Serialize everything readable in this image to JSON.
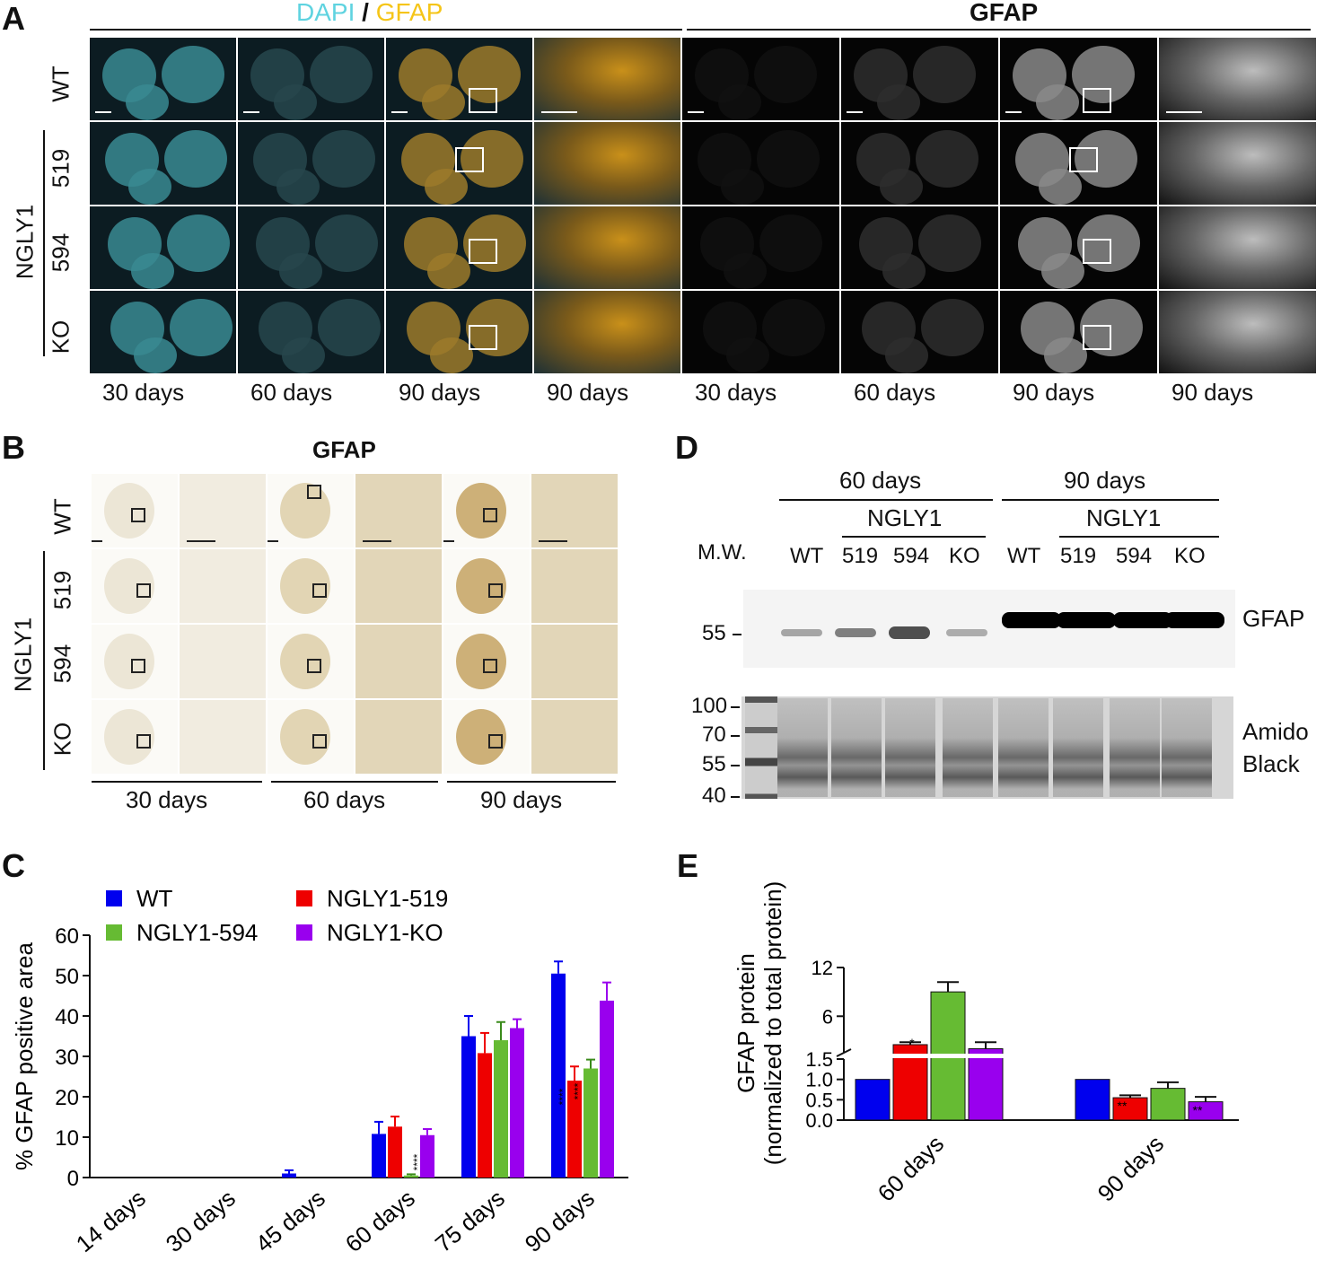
{
  "panels": {
    "A": "A",
    "B": "B",
    "C": "C",
    "D": "D",
    "E": "E"
  },
  "panelA": {
    "header_left_dapi": "DAPI",
    "header_left_sep": " / ",
    "header_left_gfap": "GFAP",
    "header_right": "GFAP",
    "row_labels": [
      "WT",
      "519",
      "594",
      "KO"
    ],
    "group_label": "NGLY1",
    "col_labels": [
      "30 days",
      "60 days",
      "90 days",
      "90 days",
      "30 days",
      "60 days",
      "90 days",
      "90 days"
    ],
    "colors": {
      "dapi": "#5fd3e0",
      "gfap": "#f5c518"
    }
  },
  "panelB": {
    "title": "GFAP",
    "row_labels": [
      "WT",
      "519",
      "594",
      "KO"
    ],
    "group_label": "NGLY1",
    "col_labels": [
      "30 days",
      "60 days",
      "90 days"
    ]
  },
  "panelD": {
    "group_labels": [
      "60 days",
      "90 days"
    ],
    "sub_labels": [
      "NGLY1",
      "NGLY1"
    ],
    "mw_label": "M.W.",
    "lane_labels": [
      "WT",
      "519",
      "594",
      "KO",
      "WT",
      "519",
      "594",
      "KO"
    ],
    "gfap_marker": "55",
    "gfap_label": "GFAP",
    "amido_markers": [
      "100",
      "70",
      "55",
      "40"
    ],
    "amido_label_1": "Amido",
    "amido_label_2": "Black",
    "gfap_band_intensity": [
      0.15,
      0.35,
      0.6,
      0.12,
      1.0,
      1.0,
      1.0,
      1.0
    ]
  },
  "chart_data": [
    {
      "type": "bar",
      "ylabel": "% GFAP positive area",
      "ylim": [
        0,
        60
      ],
      "yticks": [
        "0",
        "10",
        "20",
        "30",
        "40",
        "50",
        "60"
      ],
      "categories": [
        "14 days",
        "30 days",
        "45 days",
        "60 days",
        "75 days",
        "90 days"
      ],
      "series": [
        {
          "name": "WT",
          "color": "#0000ee",
          "values": [
            0,
            0,
            1.0,
            10.8,
            35.0,
            50.5
          ],
          "errors": [
            0,
            0,
            0.8,
            3.0,
            5.0,
            3.0
          ]
        },
        {
          "name": "NGLY1-519",
          "color": "#ee0000",
          "values": [
            0,
            0,
            0,
            12.6,
            30.8,
            24.0
          ],
          "errors": [
            0,
            0,
            0,
            2.5,
            5.0,
            3.5
          ]
        },
        {
          "name": "NGLY1-594",
          "color": "#66bb33",
          "values": [
            0,
            0,
            0,
            0.5,
            34.0,
            27.0
          ],
          "errors": [
            0,
            0,
            0,
            0.3,
            4.5,
            2.2
          ]
        },
        {
          "name": "NGLY1-KO",
          "color": "#9900ee",
          "values": [
            0,
            0,
            0,
            10.5,
            37.0,
            43.8
          ],
          "errors": [
            0,
            0,
            0,
            1.5,
            2.2,
            4.5
          ]
        }
      ],
      "annotations": [
        "****",
        "****",
        "****"
      ],
      "legend_position": "top"
    },
    {
      "type": "bar",
      "ylabel_line1": "GFAP protein",
      "ylabel_line2": "(normalized to total protein)",
      "yticks_lower": [
        "0.0",
        "0.5",
        "1.0",
        "1.5"
      ],
      "yticks_upper": [
        "6",
        "12"
      ],
      "axis_break": true,
      "categories": [
        "60 days",
        "90 days"
      ],
      "series": [
        {
          "name": "WT",
          "color": "#0000ee",
          "values": [
            1.0,
            1.0
          ],
          "errors": [
            0,
            0
          ]
        },
        {
          "name": "NGLY1-519",
          "color": "#ee0000",
          "values": [
            2.5,
            0.55
          ],
          "errors": [
            0.3,
            0.06
          ]
        },
        {
          "name": "NGLY1-594",
          "color": "#66bb33",
          "values": [
            9.0,
            0.78
          ],
          "errors": [
            1.2,
            0.15
          ]
        },
        {
          "name": "NGLY1-KO",
          "color": "#9900ee",
          "values": [
            2.0,
            0.45
          ],
          "errors": [
            0.8,
            0.12
          ]
        }
      ],
      "annotations": [
        "*",
        "**",
        "**"
      ]
    }
  ]
}
